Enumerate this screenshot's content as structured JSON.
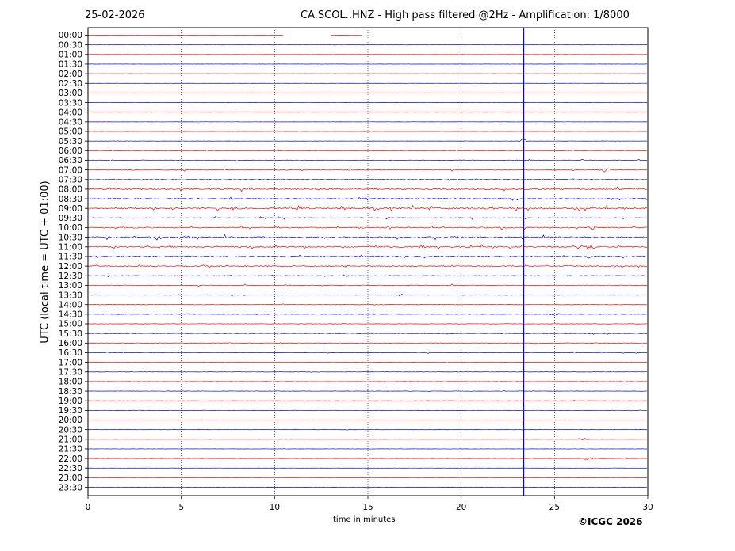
{
  "header": {
    "date": "25-02-2026",
    "title": "CA.SCOL..HNZ - High pass filtered @2Hz - Amplification: 1/8000"
  },
  "footer": {
    "credit": "©ICGC 2026"
  },
  "chart_data": {
    "type": "line",
    "title": "CA.SCOL..HNZ - High pass filtered @2Hz - Amplification: 1/8000",
    "xlabel": "time in minutes",
    "ylabel": "UTC (local time = UTC + 01:00)",
    "xlim": [
      0,
      30
    ],
    "xticks": [
      0,
      5,
      10,
      15,
      20,
      25,
      30
    ],
    "grid": "vertical dotted lines at x = 5, 10, 15, 20, 25",
    "trace_colors": [
      "#ff0000",
      "#0000ff"
    ],
    "rows": [
      "00:00",
      "00:30",
      "01:00",
      "01:30",
      "02:00",
      "02:30",
      "03:00",
      "03:30",
      "04:00",
      "04:30",
      "05:00",
      "05:30",
      "06:00",
      "06:30",
      "07:00",
      "07:30",
      "08:00",
      "08:30",
      "09:00",
      "09:30",
      "10:00",
      "10:30",
      "11:00",
      "11:30",
      "12:00",
      "12:30",
      "13:00",
      "13:30",
      "14:00",
      "14:30",
      "15:00",
      "15:30",
      "16:00",
      "16:30",
      "17:00",
      "17:30",
      "18:00",
      "18:30",
      "19:00",
      "19:30",
      "20:00",
      "20:30",
      "21:00",
      "21:30",
      "22:00",
      "22:30",
      "23:00",
      "23:30"
    ],
    "noise_level": [
      0.1,
      0.1,
      0.1,
      0.1,
      0.1,
      0.1,
      0.1,
      0.1,
      0.1,
      0.1,
      0.1,
      0.15,
      0.2,
      0.4,
      0.45,
      0.5,
      0.8,
      0.6,
      1.0,
      0.5,
      0.7,
      0.9,
      0.8,
      0.6,
      0.6,
      0.4,
      0.4,
      0.4,
      0.3,
      0.3,
      0.3,
      0.3,
      0.3,
      0.3,
      0.2,
      0.2,
      0.2,
      0.2,
      0.2,
      0.2,
      0.15,
      0.15,
      0.15,
      0.15,
      0.15,
      0.1,
      0.1,
      0.1
    ],
    "events": [
      {
        "row": "05:30",
        "minute": 23.3,
        "amplitude": "large"
      },
      {
        "row": "07:00",
        "minute": 27.7,
        "amplitude": "small"
      },
      {
        "row": "09:00",
        "minute": 11.3,
        "amplitude": "small"
      },
      {
        "row": "09:00",
        "minute": 17.5,
        "amplitude": "medium"
      },
      {
        "row": "09:00",
        "minute": 18.5,
        "amplitude": "small"
      },
      {
        "row": "10:00",
        "minute": 27.0,
        "amplitude": "small"
      },
      {
        "row": "10:30",
        "minute": 3.7,
        "amplitude": "small"
      },
      {
        "row": "11:00",
        "minute": 27.0,
        "amplitude": "small"
      },
      {
        "row": "14:30",
        "minute": 25.0,
        "amplitude": "small"
      },
      {
        "row": "21:00",
        "minute": 26.5,
        "amplitude": "small"
      },
      {
        "row": "22:00",
        "minute": 26.8,
        "amplitude": "small"
      }
    ],
    "marker_line_minute": 23.35,
    "data_gaps": [
      {
        "row": "00:00",
        "from": 10.5,
        "to": 13.0
      },
      {
        "row": "00:00",
        "from": 14.7,
        "to": 30
      }
    ]
  }
}
